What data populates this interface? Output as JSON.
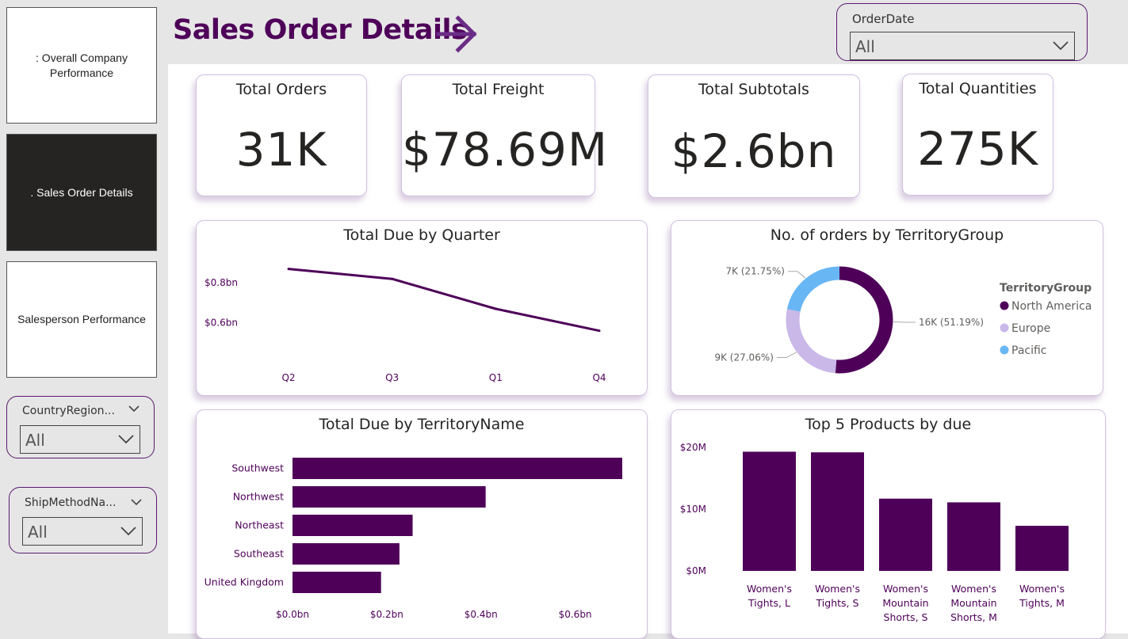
{
  "nav": {
    "items": [
      {
        "label": ": Overall Company Performance",
        "active": false
      },
      {
        "label": ". Sales Order Details",
        "active": true
      },
      {
        "label": "Salesperson Performance",
        "active": false
      }
    ]
  },
  "header": {
    "title": "Sales Order Details"
  },
  "slicers": {
    "order_date": {
      "title": "OrderDate",
      "value": "All"
    },
    "country_region": {
      "title": "CountryRegion...",
      "value": "All"
    },
    "ship_method": {
      "title": "ShipMethodNa...",
      "value": "All"
    }
  },
  "kpis": [
    {
      "title": "Total Orders",
      "value": "31K"
    },
    {
      "title": "Total Freight",
      "value": "$78.69M"
    },
    {
      "title": "Total Subtotals",
      "value": "$2.6bn"
    },
    {
      "title": "Total Quantities",
      "value": "275K"
    }
  ],
  "colors": {
    "accent": "#4e0059",
    "europe": "#c9b8e8",
    "pacific": "#69b6f5"
  },
  "chart_data": [
    {
      "id": "line",
      "type": "line",
      "title": "Total Due by Quarter",
      "categories": [
        "Q2",
        "Q3",
        "Q1",
        "Q4"
      ],
      "values": [
        0.87,
        0.82,
        0.67,
        0.56
      ],
      "ylim": [
        0.42,
        0.92
      ],
      "yticks": [
        {
          "value": 0.6,
          "label": "$0.6bn"
        },
        {
          "value": 0.8,
          "label": "$0.8bn"
        }
      ]
    },
    {
      "id": "donut",
      "type": "pie",
      "title": "No. of orders by TerritoryGroup",
      "legend_title": "TerritoryGroup",
      "slices": [
        {
          "name": "North America",
          "value": 51.19,
          "label": "16K (51.19%)"
        },
        {
          "name": "Europe",
          "value": 27.06,
          "label": "9K (27.06%)"
        },
        {
          "name": "Pacific",
          "value": 21.75,
          "label": "7K (21.75%)"
        }
      ]
    },
    {
      "id": "hbar",
      "type": "bar",
      "title": "Total Due by TerritoryName",
      "categories": [
        "Southwest",
        "Northwest",
        "Northeast",
        "Southeast",
        "United Kingdom"
      ],
      "values": [
        0.7,
        0.41,
        0.255,
        0.227,
        0.188
      ],
      "xlim": [
        0,
        0.7
      ],
      "xticks": [
        {
          "value": 0,
          "label": "$0.0bn"
        },
        {
          "value": 0.2,
          "label": "$0.2bn"
        },
        {
          "value": 0.4,
          "label": "$0.4bn"
        },
        {
          "value": 0.6,
          "label": "$0.6bn"
        }
      ]
    },
    {
      "id": "vbar",
      "type": "bar",
      "title": "Top 5 Products by due",
      "categories": [
        [
          "Women's",
          "Tights, L"
        ],
        [
          "Women's",
          "Tights, S"
        ],
        [
          "Women's",
          "Mountain",
          "Shorts, S"
        ],
        [
          "Women's",
          "Mountain",
          "Shorts, M"
        ],
        [
          "Women's",
          "Tights, M"
        ]
      ],
      "values": [
        19.3,
        19.2,
        11.7,
        11.1,
        7.3
      ],
      "ylim": [
        0,
        20
      ],
      "yticks": [
        {
          "value": 0,
          "label": "$0M"
        },
        {
          "value": 10,
          "label": "$10M"
        },
        {
          "value": 20,
          "label": "$20M"
        }
      ]
    }
  ]
}
